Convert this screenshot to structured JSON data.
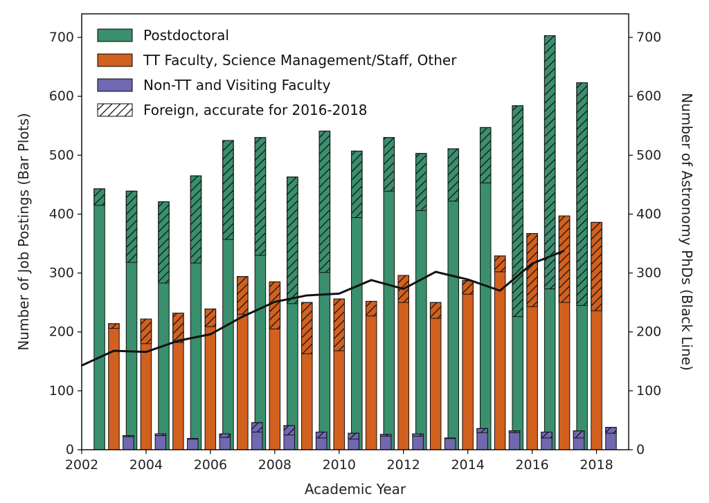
{
  "chart_data": {
    "type": "bar",
    "x": [
      2003,
      2004,
      2005,
      2006,
      2007,
      2008,
      2009,
      2010,
      2011,
      2012,
      2013,
      2014,
      2015,
      2016,
      2017,
      2018
    ],
    "xlabel": "Academic Year",
    "ylabel_left": "Number of Job Postings (Bar Plots)",
    "ylabel_right": "Number of Astronomy PhDs (Black Line)",
    "xlim": [
      2002,
      2019
    ],
    "ylim": [
      0,
      740
    ],
    "x_ticks": [
      "2002",
      "2004",
      "2006",
      "2008",
      "2010",
      "2012",
      "2014",
      "2016",
      "2018"
    ],
    "y_ticks": [
      "0",
      "100",
      "200",
      "300",
      "400",
      "500",
      "600",
      "700"
    ],
    "legend_position": "top-left",
    "series": [
      {
        "name": "Postdoctoral",
        "color": "#3a8f6e",
        "values": [
          443,
          439,
          421,
          465,
          525,
          530,
          463,
          541,
          507,
          530,
          503,
          511,
          547,
          584,
          703,
          623
        ],
        "foreign": [
          28,
          121,
          138,
          148,
          168,
          200,
          215,
          240,
          113,
          91,
          97,
          89,
          94,
          358,
          430,
          378
        ]
      },
      {
        "name": "TT Faculty, Science Management/Staff, Other",
        "color": "#d2601f",
        "values": [
          214,
          222,
          232,
          239,
          294,
          285,
          250,
          256,
          252,
          296,
          250,
          287,
          329,
          367,
          397,
          386
        ],
        "foreign": [
          8,
          42,
          50,
          30,
          64,
          80,
          87,
          88,
          25,
          46,
          27,
          23,
          27,
          124,
          147,
          150
        ]
      },
      {
        "name": "Non-TT and Visiting Faculty",
        "color": "#7068b0",
        "values": [
          24,
          27,
          19,
          27,
          46,
          41,
          30,
          28,
          26,
          27,
          20,
          36,
          32,
          30,
          32,
          38
        ],
        "foreign": [
          2,
          3,
          1,
          6,
          16,
          16,
          10,
          10,
          3,
          4,
          1,
          7,
          3,
          10,
          12,
          10
        ]
      }
    ],
    "hatch_legend": "Foreign, accurate for 2016-2018",
    "phd_line": {
      "x": [
        2002,
        2003,
        2004,
        2005,
        2006,
        2007,
        2008,
        2009,
        2010,
        2011,
        2012,
        2013,
        2014,
        2015,
        2016,
        2017
      ],
      "values": [
        143,
        168,
        166,
        185,
        196,
        226,
        251,
        262,
        265,
        288,
        273,
        302,
        289,
        270,
        316,
        338
      ]
    }
  }
}
